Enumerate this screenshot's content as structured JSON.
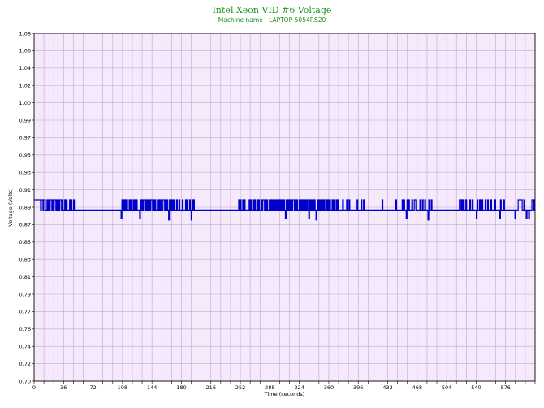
{
  "chart_data": {
    "type": "line",
    "title": "Intel Xeon VID #6 Voltage",
    "subtitle": "Machine name : LAPTOP-5054RS20",
    "xlabel": "Time (seconds)",
    "ylabel": "Voltage (Volts)",
    "xlim": [
      0,
      612
    ],
    "ylim": [
      0.7,
      1.08
    ],
    "x_ticks": [
      "0",
      "36",
      "72",
      "108",
      "144",
      "180",
      "216",
      "252",
      "288",
      "324",
      "360",
      "396",
      "432",
      "468",
      "504",
      "540",
      "576"
    ],
    "y_ticks": [
      "0.70",
      "0.72",
      "0.74",
      "0.76",
      "0.77",
      "0.79",
      "0.81",
      "0.83",
      "0.85",
      "0.87",
      "0.89",
      "0.91",
      "0.93",
      "0.95",
      "0.97",
      "0.99",
      "1.00",
      "1.02",
      "1.04",
      "1.06",
      "1.08"
    ],
    "grid": true,
    "colors": {
      "plot_background": "#f5e9fc",
      "grid": "#c9a5cf",
      "series": "#0000cc",
      "title": "#1d8f1d"
    },
    "series": [
      {
        "values": [
          0.898,
          0.898,
          0.898,
          0.898,
          0.898,
          0.898,
          0.898,
          0.898,
          0.887,
          0.898,
          0.898,
          0.887,
          0.898,
          0.898,
          0.887,
          0.887,
          0.898,
          0.887,
          0.898,
          0.887,
          0.898,
          0.898,
          0.887,
          0.898,
          0.887,
          0.898,
          0.898,
          0.887,
          0.898,
          0.887,
          0.898,
          0.887,
          0.898,
          0.898,
          0.887,
          0.898,
          0.887,
          0.887,
          0.898,
          0.887,
          0.898,
          0.887,
          0.887,
          0.887,
          0.898,
          0.887,
          0.898,
          0.887,
          0.887,
          0.898,
          0.887,
          0.887,
          0.887,
          0.887,
          0.887,
          0.887,
          0.887,
          0.887,
          0.887,
          0.887,
          0.887,
          0.887,
          0.887,
          0.887,
          0.887,
          0.887,
          0.887,
          0.887,
          0.887,
          0.887,
          0.887,
          0.887,
          0.887,
          0.887,
          0.887,
          0.887,
          0.887,
          0.887,
          0.887,
          0.887,
          0.887,
          0.887,
          0.887,
          0.887,
          0.887,
          0.887,
          0.887,
          0.887,
          0.887,
          0.887,
          0.887,
          0.887,
          0.887,
          0.887,
          0.887,
          0.887,
          0.887,
          0.887,
          0.887,
          0.887,
          0.887,
          0.887,
          0.887,
          0.887,
          0.887,
          0.887,
          0.887,
          0.887,
          0.878,
          0.898,
          0.887,
          0.898,
          0.887,
          0.898,
          0.887,
          0.898,
          0.887,
          0.887,
          0.898,
          0.887,
          0.898,
          0.887,
          0.887,
          0.898,
          0.887,
          0.898,
          0.887,
          0.898,
          0.887,
          0.887,
          0.887,
          0.878,
          0.898,
          0.887,
          0.898,
          0.887,
          0.898,
          0.898,
          0.887,
          0.898,
          0.887,
          0.898,
          0.887,
          0.898,
          0.887,
          0.898,
          0.898,
          0.887,
          0.898,
          0.887,
          0.898,
          0.887,
          0.887,
          0.898,
          0.887,
          0.898,
          0.887,
          0.898,
          0.887,
          0.887,
          0.898,
          0.898,
          0.887,
          0.898,
          0.887,
          0.898,
          0.887,
          0.876,
          0.898,
          0.887,
          0.898,
          0.887,
          0.898,
          0.887,
          0.898,
          0.887,
          0.887,
          0.898,
          0.887,
          0.887,
          0.898,
          0.887,
          0.887,
          0.887,
          0.898,
          0.887,
          0.887,
          0.887,
          0.898,
          0.887,
          0.898,
          0.887,
          0.887,
          0.898,
          0.887,
          0.876,
          0.898,
          0.887,
          0.898,
          0.887,
          0.887,
          0.887,
          0.887,
          0.887,
          0.887,
          0.887,
          0.887,
          0.887,
          0.887,
          0.887,
          0.887,
          0.887,
          0.887,
          0.887,
          0.887,
          0.887,
          0.887,
          0.887,
          0.887,
          0.887,
          0.887,
          0.887,
          0.887,
          0.887,
          0.887,
          0.887,
          0.887,
          0.887,
          0.887,
          0.887,
          0.887,
          0.887,
          0.887,
          0.887,
          0.887,
          0.887,
          0.887,
          0.887,
          0.887,
          0.887,
          0.887,
          0.887,
          0.887,
          0.887,
          0.887,
          0.887,
          0.887,
          0.887,
          0.887,
          0.887,
          0.887,
          0.887,
          0.887,
          0.887,
          0.898,
          0.887,
          0.898,
          0.887,
          0.887,
          0.898,
          0.887,
          0.898,
          0.887,
          0.887,
          0.887,
          0.887,
          0.887,
          0.898,
          0.887,
          0.898,
          0.887,
          0.887,
          0.898,
          0.887,
          0.898,
          0.887,
          0.887,
          0.898,
          0.887,
          0.898,
          0.887,
          0.887,
          0.898,
          0.887,
          0.898,
          0.898,
          0.887,
          0.898,
          0.887,
          0.898,
          0.887,
          0.887,
          0.898,
          0.887,
          0.898,
          0.887,
          0.898,
          0.887,
          0.898,
          0.887,
          0.898,
          0.887,
          0.898,
          0.898,
          0.887,
          0.898,
          0.887,
          0.898,
          0.887,
          0.887,
          0.898,
          0.887,
          0.878,
          0.898,
          0.887,
          0.898,
          0.887,
          0.898,
          0.887,
          0.898,
          0.887,
          0.898,
          0.898,
          0.887,
          0.898,
          0.887,
          0.898,
          0.887,
          0.887,
          0.898,
          0.887,
          0.898,
          0.887,
          0.898,
          0.887,
          0.898,
          0.887,
          0.898,
          0.887,
          0.898,
          0.887,
          0.878,
          0.898,
          0.887,
          0.898,
          0.887,
          0.898,
          0.887,
          0.898,
          0.887,
          0.876,
          0.887,
          0.898,
          0.887,
          0.898,
          0.887,
          0.898,
          0.887,
          0.898,
          0.887,
          0.898,
          0.887,
          0.887,
          0.898,
          0.887,
          0.898,
          0.887,
          0.898,
          0.887,
          0.887,
          0.898,
          0.887,
          0.898,
          0.887,
          0.887,
          0.898,
          0.887,
          0.898,
          0.887,
          0.887,
          0.887,
          0.887,
          0.887,
          0.898,
          0.887,
          0.887,
          0.887,
          0.887,
          0.898,
          0.887,
          0.887,
          0.898,
          0.887,
          0.887,
          0.887,
          0.887,
          0.887,
          0.887,
          0.887,
          0.887,
          0.887,
          0.898,
          0.887,
          0.887,
          0.887,
          0.887,
          0.898,
          0.887,
          0.887,
          0.898,
          0.887,
          0.887,
          0.887,
          0.887,
          0.887,
          0.887,
          0.887,
          0.887,
          0.887,
          0.887,
          0.887,
          0.887,
          0.887,
          0.887,
          0.887,
          0.887,
          0.887,
          0.887,
          0.887,
          0.887,
          0.887,
          0.887,
          0.898,
          0.887,
          0.887,
          0.887,
          0.887,
          0.887,
          0.887,
          0.887,
          0.887,
          0.887,
          0.887,
          0.887,
          0.887,
          0.887,
          0.887,
          0.887,
          0.887,
          0.898,
          0.887,
          0.887,
          0.887,
          0.887,
          0.887,
          0.887,
          0.887,
          0.898,
          0.887,
          0.898,
          0.887,
          0.887,
          0.878,
          0.898,
          0.887,
          0.898,
          0.887,
          0.887,
          0.887,
          0.898,
          0.887,
          0.887,
          0.898,
          0.898,
          0.887,
          0.887,
          0.887,
          0.887,
          0.887,
          0.898,
          0.887,
          0.887,
          0.898,
          0.887,
          0.887,
          0.898,
          0.887,
          0.887,
          0.887,
          0.876,
          0.898,
          0.887,
          0.887,
          0.898,
          0.887,
          0.887,
          0.887,
          0.887,
          0.887,
          0.887,
          0.887,
          0.887,
          0.887,
          0.887,
          0.887,
          0.887,
          0.887,
          0.887,
          0.887,
          0.887,
          0.887,
          0.887,
          0.887,
          0.887,
          0.887,
          0.887,
          0.887,
          0.887,
          0.887,
          0.887,
          0.887,
          0.887,
          0.887,
          0.887,
          0.887,
          0.887,
          0.887,
          0.887,
          0.898,
          0.898,
          0.887,
          0.898,
          0.887,
          0.898,
          0.887,
          0.887,
          0.898,
          0.887,
          0.887,
          0.887,
          0.887,
          0.898,
          0.887,
          0.887,
          0.898,
          0.887,
          0.887,
          0.887,
          0.887,
          0.878,
          0.898,
          0.887,
          0.887,
          0.898,
          0.887,
          0.887,
          0.898,
          0.887,
          0.887,
          0.887,
          0.898,
          0.887,
          0.887,
          0.898,
          0.887,
          0.887,
          0.887,
          0.898,
          0.887,
          0.887,
          0.887,
          0.887,
          0.898,
          0.887,
          0.887,
          0.887,
          0.887,
          0.887,
          0.878,
          0.898,
          0.887,
          0.887,
          0.887,
          0.898,
          0.887,
          0.887,
          0.887,
          0.887,
          0.887,
          0.887,
          0.887,
          0.887,
          0.887,
          0.887,
          0.887,
          0.887,
          0.887,
          0.878,
          0.887,
          0.887,
          0.887,
          0.898,
          0.898,
          0.898,
          0.898,
          0.898,
          0.887,
          0.887,
          0.898,
          0.887,
          0.887,
          0.878,
          0.887,
          0.887,
          0.878,
          0.887,
          0.887,
          0.887,
          0.898,
          0.898,
          0.887,
          0.898,
          0.898
        ]
      }
    ]
  }
}
